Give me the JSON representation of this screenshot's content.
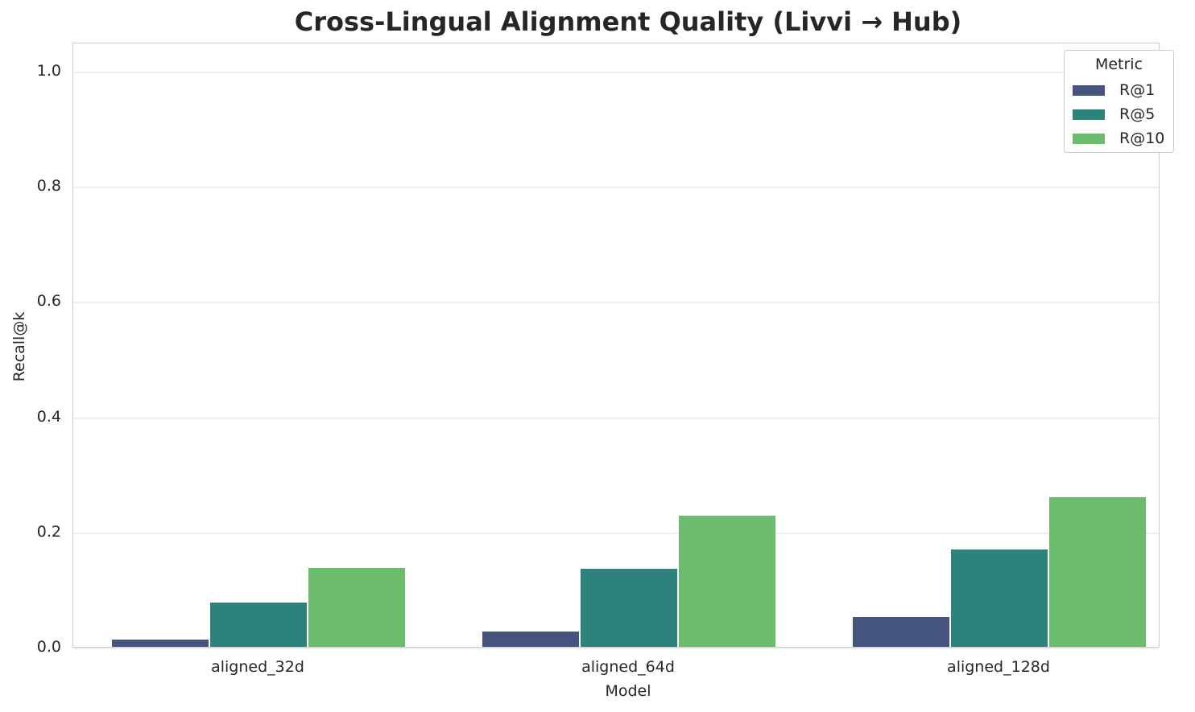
{
  "chart_data": {
    "type": "bar",
    "title": "Cross-Lingual Alignment Quality (Livvi → Hub)",
    "xlabel": "Model",
    "ylabel": "Recall@k",
    "categories": [
      "aligned_32d",
      "aligned_64d",
      "aligned_128d"
    ],
    "series": [
      {
        "name": "R@1",
        "color": "#46557f",
        "values": [
          0.013,
          0.027,
          0.052
        ]
      },
      {
        "name": "R@5",
        "color": "#2e827c",
        "values": [
          0.077,
          0.135,
          0.169
        ]
      },
      {
        "name": "R@10",
        "color": "#6bbd6d",
        "values": [
          0.137,
          0.228,
          0.26
        ]
      }
    ],
    "ylim": [
      0,
      1.05
    ],
    "yticks": [
      "0.0",
      "0.2",
      "0.4",
      "0.6",
      "0.8",
      "1.0"
    ],
    "grid": true,
    "legend": {
      "title": "Metric",
      "position": "upper right"
    }
  }
}
